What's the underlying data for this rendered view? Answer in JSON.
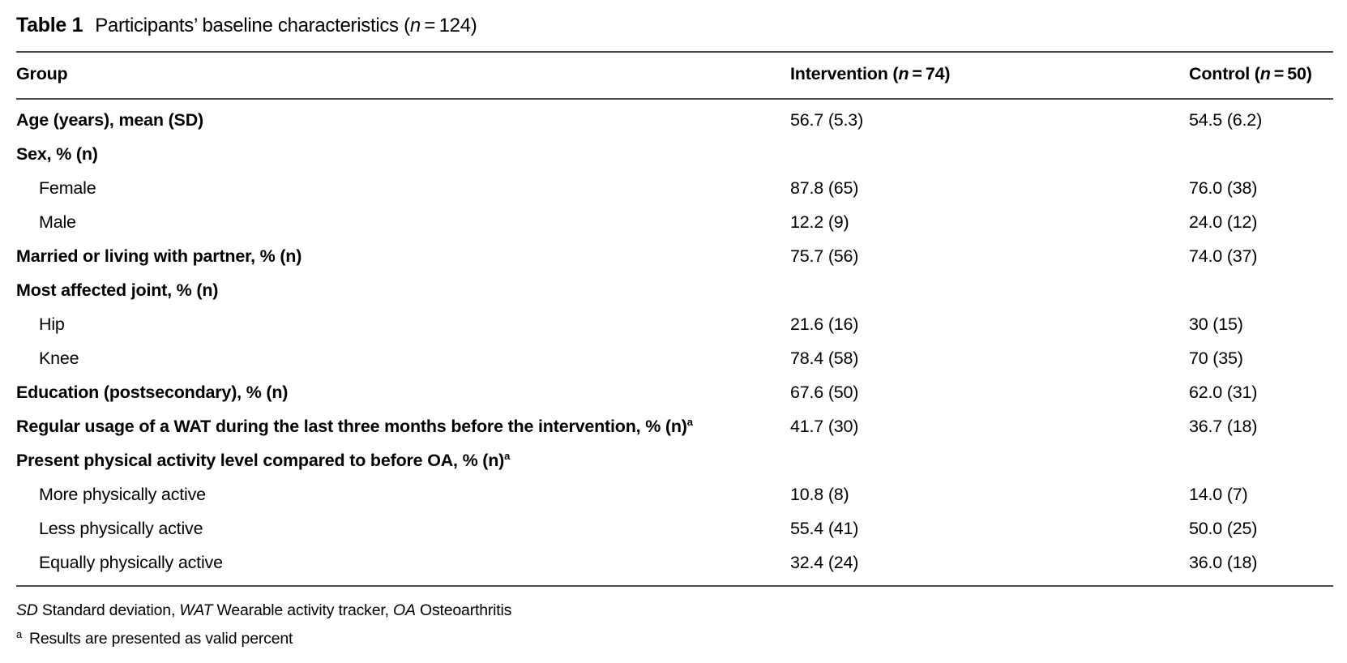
{
  "table": {
    "caption": {
      "label": "Table 1",
      "title_pre": "Participants’ baseline characteristics (",
      "title_n": "n",
      "title_post": " = 124)"
    },
    "header": {
      "group": "Group",
      "intervention_pre": "Intervention (",
      "intervention_n": "n",
      "intervention_post": " = 74)",
      "control_pre": "Control (",
      "control_n": "n",
      "control_post": " = 50)"
    },
    "rows": [
      {
        "label": "Age (years), mean (SD)",
        "bold": true,
        "indent": false,
        "sup": "",
        "intervention": "56.7 (5.3)",
        "control": "54.5 (6.2)"
      },
      {
        "label": "Sex, % (n)",
        "bold": true,
        "indent": false,
        "sup": "",
        "intervention": "",
        "control": ""
      },
      {
        "label": "Female",
        "bold": false,
        "indent": true,
        "sup": "",
        "intervention": "87.8 (65)",
        "control": "76.0 (38)"
      },
      {
        "label": "Male",
        "bold": false,
        "indent": true,
        "sup": "",
        "intervention": "12.2 (9)",
        "control": "24.0 (12)"
      },
      {
        "label": "Married or living with partner, % (n)",
        "bold": true,
        "indent": false,
        "sup": "",
        "intervention": "75.7 (56)",
        "control": "74.0 (37)"
      },
      {
        "label": "Most affected joint, % (n)",
        "bold": true,
        "indent": false,
        "sup": "",
        "intervention": "",
        "control": ""
      },
      {
        "label": "Hip",
        "bold": false,
        "indent": true,
        "sup": "",
        "intervention": "21.6 (16)",
        "control": "30 (15)"
      },
      {
        "label": "Knee",
        "bold": false,
        "indent": true,
        "sup": "",
        "intervention": "78.4 (58)",
        "control": "70 (35)"
      },
      {
        "label": "Education (postsecondary), % (n)",
        "bold": true,
        "indent": false,
        "sup": "",
        "intervention": "67.6 (50)",
        "control": "62.0 (31)"
      },
      {
        "label": "Regular usage of a WAT during the last three months before the intervention, % (n)",
        "bold": true,
        "indent": false,
        "sup": "a",
        "intervention": "41.7 (30)",
        "control": "36.7 (18)"
      },
      {
        "label": "Present physical activity level compared to before OA, % (n)",
        "bold": true,
        "indent": false,
        "sup": "a",
        "intervention": "",
        "control": ""
      },
      {
        "label": "More physically active",
        "bold": false,
        "indent": true,
        "sup": "",
        "intervention": "10.8 (8)",
        "control": "14.0 (7)"
      },
      {
        "label": "Less physically active",
        "bold": false,
        "indent": true,
        "sup": "",
        "intervention": "55.4 (41)",
        "control": "50.0 (25)"
      },
      {
        "label": "Equally physically active",
        "bold": false,
        "indent": true,
        "sup": "",
        "intervention": "32.4 (24)",
        "control": "36.0 (18)"
      }
    ],
    "footnotes": {
      "abbr_sd": "SD",
      "abbr_sd_text": " Standard deviation, ",
      "abbr_wat": "WAT",
      "abbr_wat_text": " Wearable activity tracker, ",
      "abbr_oa": "OA",
      "abbr_oa_text": " Osteoarthritis",
      "note_a_marker": "a",
      "note_a_text": "Results are presented as valid percent"
    }
  }
}
